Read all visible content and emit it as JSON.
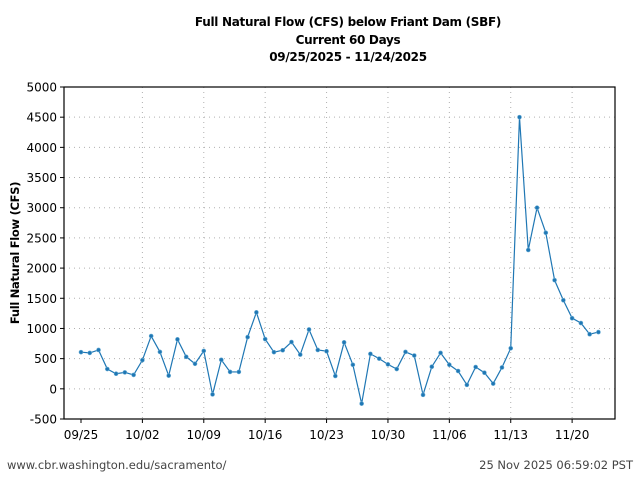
{
  "title": {
    "line1": "Full Natural Flow (CFS) below Friant Dam (SBF)",
    "line2": "Current 60 Days",
    "line3": "09/25/2025 - 11/24/2025"
  },
  "footer": {
    "url": "www.cbr.washington.edu/sacramento/",
    "timestamp": "25 Nov 2025 06:59:02 PST"
  },
  "colors": {
    "line": "#1f77b4",
    "marker": "#1f77b4",
    "grid": "#b0b0b0",
    "axis": "#000000"
  },
  "chart_data": {
    "type": "line",
    "title": "Full Natural Flow (CFS) below Friant Dam (SBF)",
    "subtitle": "Current 60 Days 09/25/2025 - 11/24/2025",
    "xlabel": "",
    "ylabel": "Full Natural Flow (CFS)",
    "ylim": [
      -500,
      5000
    ],
    "yticks": [
      -500,
      0,
      500,
      1000,
      1500,
      2000,
      2500,
      3000,
      3500,
      4000,
      4500,
      5000
    ],
    "xtick_labels": [
      "09/25",
      "10/02",
      "10/09",
      "10/16",
      "10/23",
      "10/30",
      "11/06",
      "11/13",
      "11/20"
    ],
    "xtick_day_index": [
      0,
      7,
      14,
      21,
      28,
      35,
      42,
      49,
      56
    ],
    "xlim_days": [
      0,
      60.5
    ],
    "grid": true,
    "legend": null,
    "series": [
      {
        "name": "Full Natural Flow (CFS)",
        "x": [
          "09/25",
          "09/26",
          "09/27",
          "09/28",
          "09/29",
          "09/30",
          "10/01",
          "10/02",
          "10/03",
          "10/04",
          "10/05",
          "10/06",
          "10/07",
          "10/08",
          "10/09",
          "10/10",
          "10/11",
          "10/12",
          "10/13",
          "10/14",
          "10/15",
          "10/16",
          "10/17",
          "10/18",
          "10/19",
          "10/20",
          "10/21",
          "10/22",
          "10/23",
          "10/24",
          "10/25",
          "10/26",
          "10/27",
          "10/28",
          "10/29",
          "10/30",
          "10/31",
          "11/01",
          "11/02",
          "11/03",
          "11/04",
          "11/05",
          "11/06",
          "11/07",
          "11/08",
          "11/09",
          "11/10",
          "11/11",
          "11/12",
          "11/13",
          "11/14",
          "11/15",
          "11/16",
          "11/17",
          "11/18",
          "11/19",
          "11/20",
          "11/21",
          "11/22",
          "11/23"
        ],
        "values": [
          607,
          595,
          644,
          328,
          250,
          272,
          230,
          475,
          874,
          611,
          218,
          820,
          530,
          415,
          628,
          -93,
          480,
          280,
          280,
          857,
          1267,
          824,
          607,
          639,
          775,
          567,
          983,
          644,
          623,
          213,
          770,
          398,
          -246,
          579,
          500,
          405,
          328,
          611,
          551,
          -100,
          366,
          595,
          398,
          295,
          66,
          361,
          267,
          87,
          354,
          672,
          4500,
          2300,
          3000,
          2585,
          1800,
          1467,
          1170,
          1090,
          905,
          940
        ]
      }
    ]
  }
}
